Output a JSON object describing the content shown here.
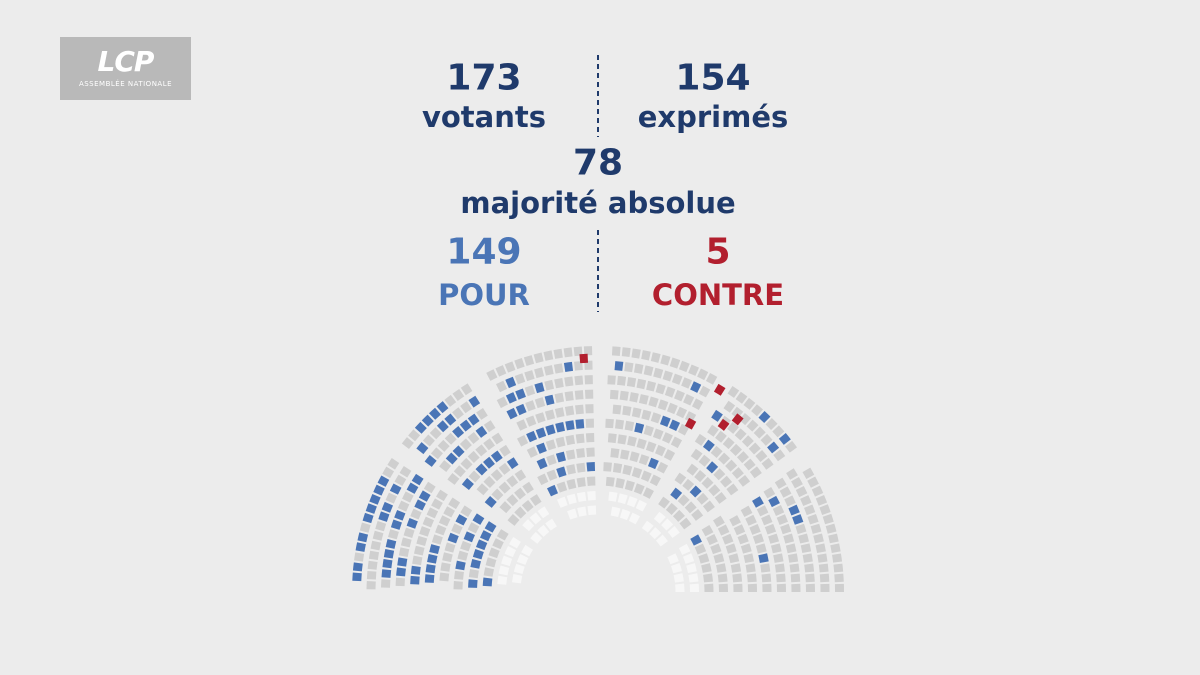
{
  "logo": {
    "name": "LCP",
    "subtitle": "ASSEMBLÉE NATIONALE"
  },
  "votants": {
    "value": "173",
    "label": "votants"
  },
  "exprimes": {
    "value": "154",
    "label": "exprimés"
  },
  "majorite": {
    "value": "78",
    "label": "majorité absolue"
  },
  "pour": {
    "value": "149",
    "label": "POUR"
  },
  "contre": {
    "value": "5",
    "label": "CONTRE"
  }
}
